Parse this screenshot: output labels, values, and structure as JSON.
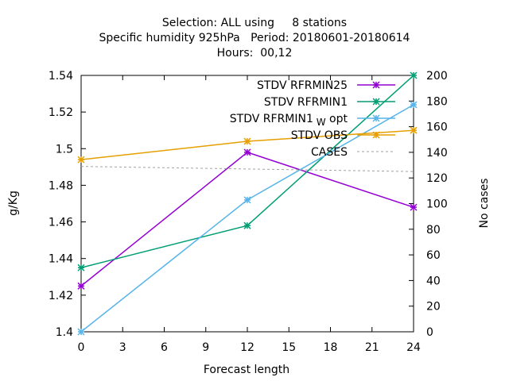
{
  "chart_data": {
    "type": "line",
    "title_lines": [
      "Selection: ALL using     8 stations",
      "Specific humidity 925hPa   Period: 20180601-20180614",
      "Hours:  00,12"
    ],
    "xlabel": "Forecast length",
    "ylabel": "g/Kg",
    "y2label": "No cases",
    "xlim": [
      0,
      24
    ],
    "ylim": [
      1.4,
      1.54
    ],
    "y2lim": [
      0,
      200
    ],
    "xticks": [
      "0",
      "3",
      "6",
      "9",
      "12",
      "15",
      "18",
      "21",
      "24"
    ],
    "yticks": [
      "1.4",
      "1.42",
      "1.44",
      "1.46",
      "1.48",
      "1.5",
      "1.52",
      "1.54"
    ],
    "y2ticks": [
      "0",
      "20",
      "40",
      "60",
      "80",
      "100",
      "120",
      "140",
      "160",
      "180",
      "200"
    ],
    "grid": false,
    "legend_position": "top-right",
    "series": [
      {
        "name": "STDV RFRMIN25",
        "label_main": "STDV RFRMIN25",
        "label_sub": "",
        "label_tail": "",
        "color": "#9400d3",
        "axis": "y",
        "style": "line-points",
        "x": [
          0,
          12,
          24
        ],
        "values": [
          1.425,
          1.498,
          1.468
        ]
      },
      {
        "name": "STDV RFRMIN1",
        "label_main": "STDV RFRMIN1",
        "label_sub": "",
        "label_tail": "",
        "color": "#009e73",
        "axis": "y",
        "style": "line-points",
        "x": [
          0,
          12,
          24
        ],
        "values": [
          1.435,
          1.458,
          1.54
        ]
      },
      {
        "name": "STDV RFRMIN1_W opt",
        "label_main": "STDV RFRMIN1",
        "label_sub": "W",
        "label_tail": " opt",
        "color": "#56b4e9",
        "axis": "y",
        "style": "line-points",
        "x": [
          0,
          12,
          24
        ],
        "values": [
          1.4,
          1.472,
          1.524
        ]
      },
      {
        "name": "STDV OBS",
        "label_main": "STDV OBS",
        "label_sub": "",
        "label_tail": "",
        "color": "#e69f00",
        "axis": "y",
        "style": "line-points",
        "x": [
          0,
          12,
          24
        ],
        "values": [
          1.494,
          1.504,
          1.51
        ]
      },
      {
        "name": "CASES",
        "label_main": "CASES",
        "label_sub": "",
        "label_tail": "",
        "color": "#a0a0a0",
        "axis": "y2",
        "style": "dashed",
        "x": [
          0,
          12,
          24
        ],
        "values": [
          129,
          127,
          125
        ]
      }
    ]
  }
}
